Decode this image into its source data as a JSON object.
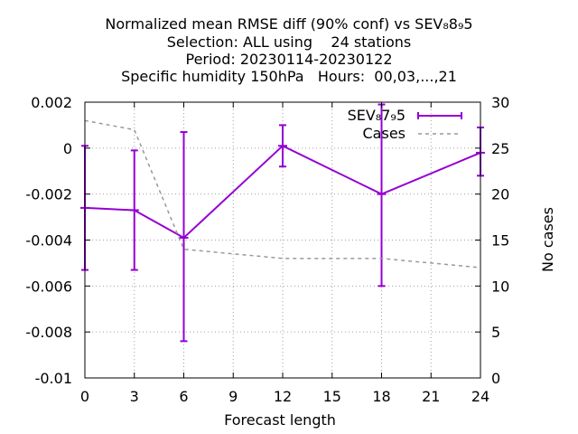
{
  "chart_data": {
    "type": "line",
    "title_lines": [
      "Normalized mean RMSE diff (90% conf) vs SEV₈8₉5",
      "Selection: ALL using    24 stations",
      "Period: 20230114-20230122",
      "Specific humidity 150hPa   Hours:  00,03,...,21"
    ],
    "xlabel": "Forecast length",
    "ylabel": "",
    "y2label": "No cases",
    "xlim": [
      0,
      24
    ],
    "ylim": [
      -0.01,
      0.002
    ],
    "y2lim": [
      0,
      30
    ],
    "x_ticks": [
      0,
      3,
      6,
      9,
      12,
      15,
      18,
      21,
      24
    ],
    "y_ticks": [
      0.002,
      0,
      -0.002,
      -0.004,
      -0.006,
      -0.008,
      -0.01
    ],
    "y_tick_labels": [
      "0.002",
      "0",
      "-0.002",
      "-0.004",
      "-0.006",
      "-0.008",
      "-0.01"
    ],
    "y2_ticks": [
      30,
      25,
      20,
      15,
      10,
      5,
      0
    ],
    "grid": true,
    "legend_position": "top-right",
    "series": [
      {
        "name": "SEV₈7₉5",
        "color": "#9400d3",
        "style": "line-errorbars",
        "axis": "y",
        "x": [
          0,
          3,
          6,
          12,
          18,
          24
        ],
        "values": [
          -0.0026,
          -0.0027,
          -0.0039,
          0.0001,
          -0.002,
          -0.0002
        ],
        "err_low": [
          -0.0053,
          -0.0053,
          -0.0084,
          -0.0008,
          -0.006,
          -0.0012
        ],
        "err_high": [
          0.0001,
          -0.0001,
          0.0007,
          0.001,
          0.0019,
          0.0009
        ]
      },
      {
        "name": "Cases",
        "color": "#999999",
        "style": "dashed",
        "axis": "y2",
        "x": [
          0,
          3,
          6,
          12,
          18,
          24
        ],
        "values": [
          28,
          27,
          14,
          13,
          13,
          12
        ]
      }
    ]
  }
}
